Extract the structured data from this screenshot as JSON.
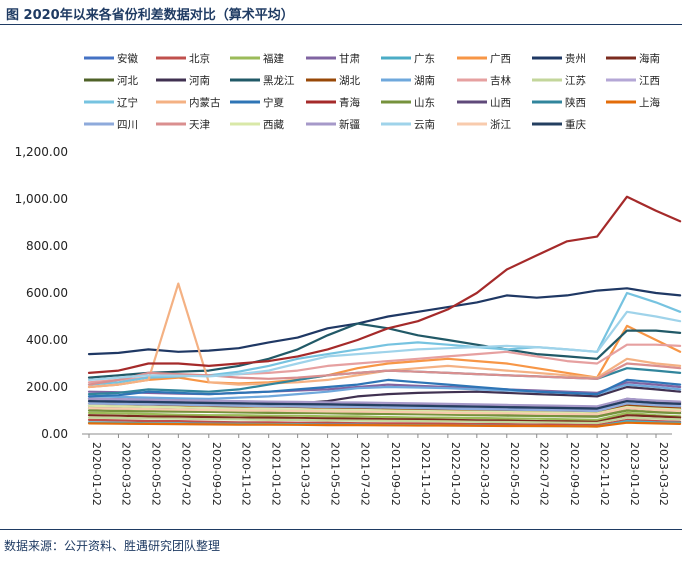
{
  "page": {
    "title": "图 2020年以来各省份利差数据对比（算术平均）",
    "source": "数据来源：公开资料、胜遇研究团队整理"
  },
  "chart_data": {
    "type": "line",
    "title": "",
    "xlabel": "",
    "ylabel": "",
    "ylim": [
      0,
      1200
    ],
    "yticks": [
      "0.00",
      "200.00",
      "400.00",
      "600.00",
      "800.00",
      "1,000.00",
      "1,200.00"
    ],
    "xticks": [
      "2020-01-02",
      "2020-03-02",
      "2020-05-02",
      "2020-07-02",
      "2020-09-02",
      "2020-11-02",
      "2021-01-02",
      "2021-03-02",
      "2021-05-02",
      "2021-07-02",
      "2021-09-02",
      "2021-11-02",
      "2022-01-02",
      "2022-03-02",
      "2022-05-02",
      "2022-07-02",
      "2022-09-02",
      "2022-11-02",
      "2023-01-02",
      "2023-03-02"
    ],
    "x": [
      "2020-01-02",
      "2020-03-02",
      "2020-05-02",
      "2020-07-02",
      "2020-09-02",
      "2020-11-02",
      "2021-01-02",
      "2021-03-02",
      "2021-05-02",
      "2021-07-02",
      "2021-09-02",
      "2021-11-02",
      "2022-01-02",
      "2022-03-02",
      "2022-05-02",
      "2022-07-02",
      "2022-09-02",
      "2022-11-02",
      "2023-01-02",
      "2023-03-02",
      "2023-04-20"
    ],
    "grid": false,
    "legend": "top",
    "series": [
      {
        "name": "安徽",
        "color": "#4472c4",
        "values": [
          150,
          145,
          140,
          135,
          132,
          130,
          128,
          125,
          122,
          120,
          118,
          115,
          112,
          110,
          108,
          105,
          100,
          95,
          120,
          110,
          105
        ]
      },
      {
        "name": "北京",
        "color": "#c0504d",
        "values": [
          60,
          58,
          55,
          55,
          52,
          50,
          50,
          48,
          48,
          46,
          45,
          45,
          44,
          42,
          42,
          40,
          40,
          38,
          60,
          55,
          52
        ]
      },
      {
        "name": "福建",
        "color": "#9bbb59",
        "values": [
          90,
          88,
          85,
          82,
          80,
          80,
          78,
          78,
          75,
          75,
          72,
          70,
          70,
          68,
          66,
          65,
          62,
          60,
          90,
          80,
          75
        ]
      },
      {
        "name": "甘肃",
        "color": "#8064a2",
        "values": [
          180,
          178,
          175,
          172,
          170,
          175,
          180,
          185,
          190,
          200,
          210,
          205,
          200,
          195,
          190,
          185,
          180,
          175,
          220,
          210,
          200
        ]
      },
      {
        "name": "广东",
        "color": "#4bacc6",
        "values": [
          50,
          48,
          46,
          45,
          44,
          43,
          42,
          42,
          40,
          40,
          38,
          38,
          36,
          36,
          35,
          34,
          33,
          32,
          55,
          50,
          48
        ]
      },
      {
        "name": "广西",
        "color": "#f79646",
        "values": [
          200,
          210,
          230,
          240,
          220,
          215,
          220,
          230,
          250,
          280,
          300,
          310,
          320,
          310,
          300,
          280,
          260,
          240,
          460,
          400,
          350
        ]
      },
      {
        "name": "贵州",
        "color": "#1f3864",
        "values": [
          340,
          345,
          360,
          350,
          355,
          365,
          390,
          410,
          450,
          470,
          500,
          520,
          540,
          560,
          590,
          580,
          590,
          610,
          620,
          600,
          590
        ]
      },
      {
        "name": "海南",
        "color": "#7b2b1f",
        "values": [
          80,
          78,
          75,
          74,
          72,
          70,
          70,
          68,
          66,
          65,
          63,
          62,
          60,
          58,
          57,
          55,
          54,
          52,
          80,
          75,
          70
        ]
      },
      {
        "name": "河北",
        "color": "#4f6228",
        "values": [
          110,
          108,
          105,
          102,
          100,
          98,
          96,
          95,
          93,
          92,
          90,
          88,
          86,
          85,
          83,
          82,
          80,
          78,
          110,
          100,
          95
        ]
      },
      {
        "name": "河南",
        "color": "#403151",
        "values": [
          120,
          118,
          115,
          112,
          110,
          115,
          120,
          130,
          140,
          160,
          170,
          175,
          178,
          180,
          175,
          170,
          165,
          160,
          200,
          190,
          180
        ]
      },
      {
        "name": "黑龙江",
        "color": "#215967",
        "values": [
          240,
          250,
          260,
          265,
          270,
          290,
          320,
          360,
          420,
          470,
          450,
          420,
          400,
          380,
          360,
          340,
          330,
          320,
          440,
          440,
          430
        ]
      },
      {
        "name": "湖北",
        "color": "#984807",
        "values": [
          130,
          128,
          125,
          122,
          120,
          118,
          116,
          115,
          112,
          110,
          108,
          105,
          102,
          100,
          98,
          95,
          92,
          90,
          125,
          115,
          110
        ]
      },
      {
        "name": "湖南",
        "color": "#6fa8dc",
        "values": [
          160,
          158,
          155,
          152,
          150,
          155,
          160,
          170,
          180,
          195,
          200,
          198,
          195,
          190,
          185,
          180,
          175,
          170,
          210,
          200,
          190
        ]
      },
      {
        "name": "吉林",
        "color": "#e6a0a0",
        "values": [
          220,
          230,
          240,
          245,
          250,
          255,
          260,
          270,
          290,
          300,
          310,
          320,
          330,
          340,
          350,
          330,
          310,
          300,
          380,
          380,
          375
        ]
      },
      {
        "name": "江苏",
        "color": "#c3d69b",
        "values": [
          70,
          68,
          66,
          65,
          63,
          62,
          60,
          60,
          58,
          57,
          56,
          55,
          54,
          52,
          51,
          50,
          48,
          47,
          70,
          65,
          62
        ]
      },
      {
        "name": "江西",
        "color": "#b4a7d6",
        "values": [
          140,
          138,
          135,
          132,
          130,
          128,
          127,
          125,
          124,
          122,
          120,
          118,
          116,
          115,
          113,
          110,
          108,
          105,
          140,
          130,
          125
        ]
      },
      {
        "name": "辽宁",
        "color": "#76c3e0",
        "values": [
          210,
          220,
          240,
          245,
          250,
          265,
          290,
          320,
          340,
          360,
          380,
          390,
          380,
          370,
          360,
          370,
          360,
          350,
          600,
          560,
          520
        ]
      },
      {
        "name": "内蒙古",
        "color": "#f4b183",
        "values": [
          200,
          210,
          230,
          640,
          220,
          210,
          215,
          220,
          230,
          250,
          270,
          280,
          290,
          280,
          270,
          260,
          250,
          240,
          320,
          300,
          290
        ]
      },
      {
        "name": "宁夏",
        "color": "#2e75b6",
        "values": [
          160,
          165,
          180,
          175,
          170,
          175,
          180,
          190,
          200,
          210,
          230,
          220,
          210,
          200,
          190,
          180,
          175,
          170,
          230,
          220,
          210
        ]
      },
      {
        "name": "青海",
        "color": "#a52a2a",
        "values": [
          260,
          270,
          300,
          300,
          290,
          300,
          310,
          330,
          360,
          400,
          450,
          480,
          530,
          600,
          700,
          760,
          820,
          840,
          1010,
          950,
          905
        ]
      },
      {
        "name": "山东",
        "color": "#76923c",
        "values": [
          100,
          98,
          96,
          95,
          94,
          92,
          90,
          90,
          88,
          86,
          85,
          84,
          82,
          80,
          78,
          77,
          75,
          73,
          100,
          92,
          88
        ]
      },
      {
        "name": "山西",
        "color": "#5f497a",
        "values": [
          150,
          148,
          145,
          143,
          140,
          138,
          136,
          135,
          133,
          132,
          130,
          128,
          126,
          124,
          122,
          120,
          118,
          115,
          150,
          140,
          135
        ]
      },
      {
        "name": "陕西",
        "color": "#31859c",
        "values": [
          170,
          175,
          190,
          185,
          180,
          190,
          210,
          230,
          250,
          260,
          270,
          265,
          260,
          255,
          250,
          245,
          240,
          235,
          280,
          270,
          260
        ]
      },
      {
        "name": "上海",
        "color": "#e36c09",
        "values": [
          45,
          44,
          43,
          42,
          41,
          40,
          40,
          39,
          38,
          38,
          37,
          36,
          36,
          35,
          34,
          34,
          33,
          32,
          48,
          45,
          43
        ]
      },
      {
        "name": "四川",
        "color": "#8eaadb",
        "values": [
          130,
          128,
          126,
          125,
          122,
          120,
          118,
          117,
          115,
          114,
          112,
          110,
          108,
          106,
          104,
          102,
          100,
          98,
          130,
          122,
          118
        ]
      },
      {
        "name": "天津",
        "color": "#da8f8f",
        "values": [
          210,
          230,
          260,
          255,
          250,
          240,
          235,
          240,
          250,
          260,
          270,
          265,
          260,
          255,
          250,
          245,
          240,
          235,
          300,
          290,
          280
        ]
      },
      {
        "name": "西藏",
        "color": "#d9e8a8",
        "values": [
          120,
          118,
          115,
          113,
          110,
          108,
          106,
          105,
          103,
          102,
          100,
          98,
          96,
          95,
          93,
          92,
          90,
          88,
          115,
          108,
          104
        ]
      },
      {
        "name": "新疆",
        "color": "#a699c9",
        "values": [
          150,
          148,
          146,
          144,
          142,
          140,
          138,
          137,
          135,
          134,
          132,
          130,
          128,
          126,
          124,
          122,
          120,
          118,
          150,
          142,
          138
        ]
      },
      {
        "name": "云南",
        "color": "#9fd3ea",
        "values": [
          230,
          240,
          250,
          248,
          245,
          255,
          270,
          300,
          330,
          340,
          350,
          360,
          365,
          370,
          375,
          370,
          360,
          350,
          520,
          500,
          480
        ]
      },
      {
        "name": "浙江",
        "color": "#f8cbad",
        "values": [
          110,
          108,
          106,
          104,
          102,
          100,
          99,
          98,
          96,
          95,
          94,
          92,
          90,
          89,
          88,
          86,
          85,
          84,
          110,
          102,
          98
        ]
      },
      {
        "name": "重庆",
        "color": "#243f60",
        "values": [
          140,
          138,
          136,
          134,
          132,
          130,
          128,
          127,
          126,
          124,
          122,
          120,
          118,
          116,
          114,
          112,
          110,
          108,
          140,
          132,
          128
        ]
      }
    ]
  }
}
